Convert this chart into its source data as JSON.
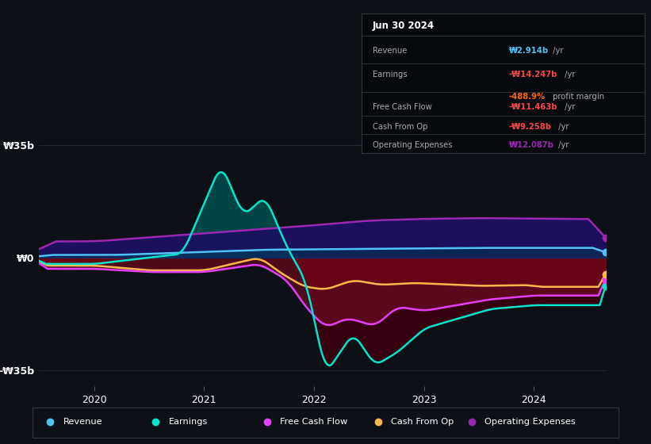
{
  "bg_color": "#0d1117",
  "plot_bg_color": "#0d1117",
  "ylabel_35b": "₩35b",
  "ylabel_0": "₩0",
  "ylabel_neg35b": "-₩35b",
  "xlabels": [
    "2020",
    "2021",
    "2022",
    "2023",
    "2024"
  ],
  "legend_labels": [
    "Revenue",
    "Earnings",
    "Free Cash Flow",
    "Cash From Op",
    "Operating Expenses"
  ],
  "legend_colors": [
    "#4fc3f7",
    "#00e5cc",
    "#e040fb",
    "#ffb74d",
    "#9c27b0"
  ],
  "info_date": "Jun 30 2024",
  "info_rows": [
    {
      "label": "Revenue",
      "value": "₩2.914b",
      "value_color": "#4fc3f7",
      "suffix": " /yr",
      "extra": null,
      "extra_color": null
    },
    {
      "label": "Earnings",
      "value": "-₩14.247b",
      "value_color": "#ff4444",
      "suffix": " /yr",
      "extra": "-488.9% profit margin",
      "extra_color": "#ff6600"
    },
    {
      "label": "Free Cash Flow",
      "value": "-₩11.463b",
      "value_color": "#ff4444",
      "suffix": " /yr",
      "extra": null,
      "extra_color": null
    },
    {
      "label": "Cash From Op",
      "value": "-₩9.258b",
      "value_color": "#ff4444",
      "suffix": " /yr",
      "extra": null,
      "extra_color": null
    },
    {
      "label": "Operating Expenses",
      "value": "₩12.087b",
      "value_color": "#9c27b0",
      "suffix": " /yr",
      "extra": null,
      "extra_color": null
    }
  ],
  "revenue_color": "#4fc3f7",
  "earnings_color": "#00e5cc",
  "fcf_color": "#e040fb",
  "cashop_color": "#ffb74d",
  "opex_color": "#9c27b0"
}
